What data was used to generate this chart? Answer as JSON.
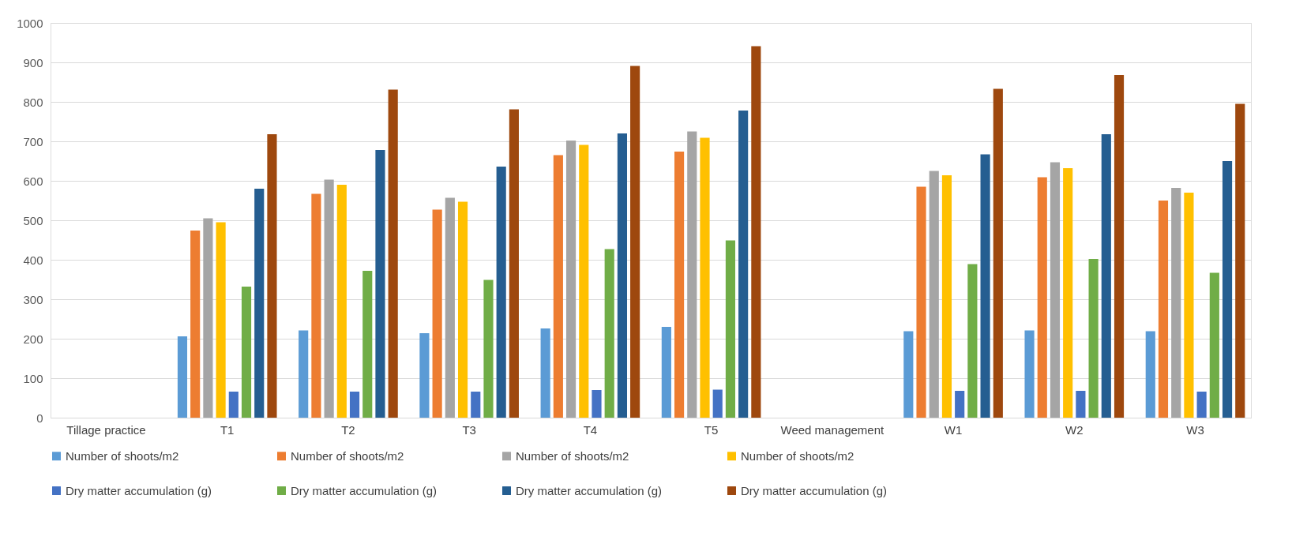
{
  "chart_data": {
    "type": "bar",
    "categories": [
      "Tillage practice",
      "T1",
      "T2",
      "T3",
      "T4",
      "T5",
      "Weed management",
      "W1",
      "W2",
      "W3"
    ],
    "series": [
      {
        "name": "Number of shoots/m2",
        "color": "#5b9bd5",
        "values": [
          null,
          206,
          221,
          214,
          226,
          230,
          null,
          219,
          221,
          219
        ]
      },
      {
        "name": "Number of shoots/m2",
        "color": "#ed7d31",
        "values": [
          null,
          474,
          567,
          527,
          665,
          674,
          null,
          585,
          609,
          550
        ]
      },
      {
        "name": "Number of shoots/m2",
        "color": "#a5a5a5",
        "values": [
          null,
          505,
          603,
          557,
          702,
          725,
          null,
          625,
          647,
          582
        ]
      },
      {
        "name": "Number of shoots/m2",
        "color": "#ffc000",
        "values": [
          null,
          495,
          590,
          547,
          691,
          709,
          null,
          614,
          632,
          570
        ]
      },
      {
        "name": "Dry matter accumulation (g)",
        "color": "#4472c4",
        "values": [
          null,
          66,
          66,
          66,
          70,
          71,
          null,
          68,
          68,
          66
        ]
      },
      {
        "name": "Dry matter accumulation (g)",
        "color": "#70ad47",
        "values": [
          null,
          332,
          372,
          349,
          427,
          449,
          null,
          389,
          402,
          367
        ]
      },
      {
        "name": "Dry matter accumulation (g)",
        "color": "#255e91",
        "values": [
          null,
          580,
          678,
          636,
          720,
          778,
          null,
          667,
          718,
          650
        ]
      },
      {
        "name": "Dry matter accumulation (g)",
        "color": "#9e480e",
        "values": [
          null,
          718,
          831,
          781,
          891,
          941,
          null,
          833,
          868,
          795
        ]
      }
    ],
    "ylim": [
      0,
      1000
    ],
    "yticks": [
      0,
      100,
      200,
      300,
      400,
      500,
      600,
      700,
      800,
      900,
      1000
    ],
    "grid": "y",
    "legend": "bottom"
  }
}
